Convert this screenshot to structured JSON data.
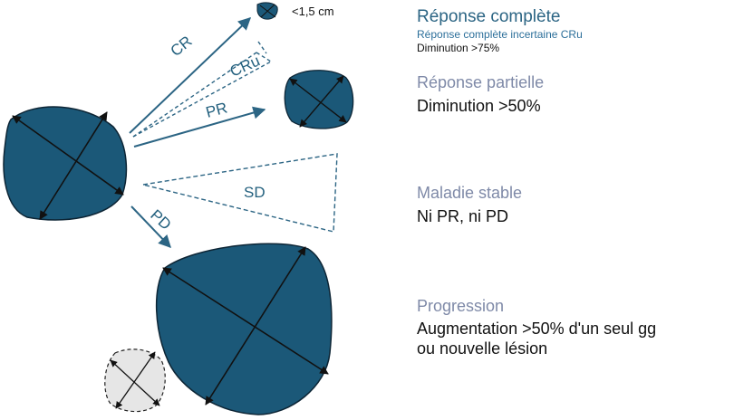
{
  "diagram": {
    "arrow_labels": {
      "cr": "CR",
      "cru": "CRu",
      "pr": "PR",
      "sd": "SD",
      "pd": "PD"
    },
    "size_note": "<1,5 cm",
    "colors": {
      "tumor_fill": "#1b5878",
      "arrow": "#2c6584",
      "new_lesion_fill": "#e6e6e6"
    }
  },
  "legend": {
    "cr": {
      "title": "Réponse complète",
      "subtitle": "Réponse complète incertaine CRu",
      "detail": "Diminution >75%"
    },
    "pr": {
      "title": "Réponse partielle",
      "detail": "Diminution >50%"
    },
    "sd": {
      "title": "Maladie stable",
      "detail": "Ni PR, ni PD"
    },
    "pd": {
      "title": "Progression",
      "detail_line1": "Augmentation >50% d'un seul gg",
      "detail_line2": "ou nouvelle lésion"
    }
  }
}
